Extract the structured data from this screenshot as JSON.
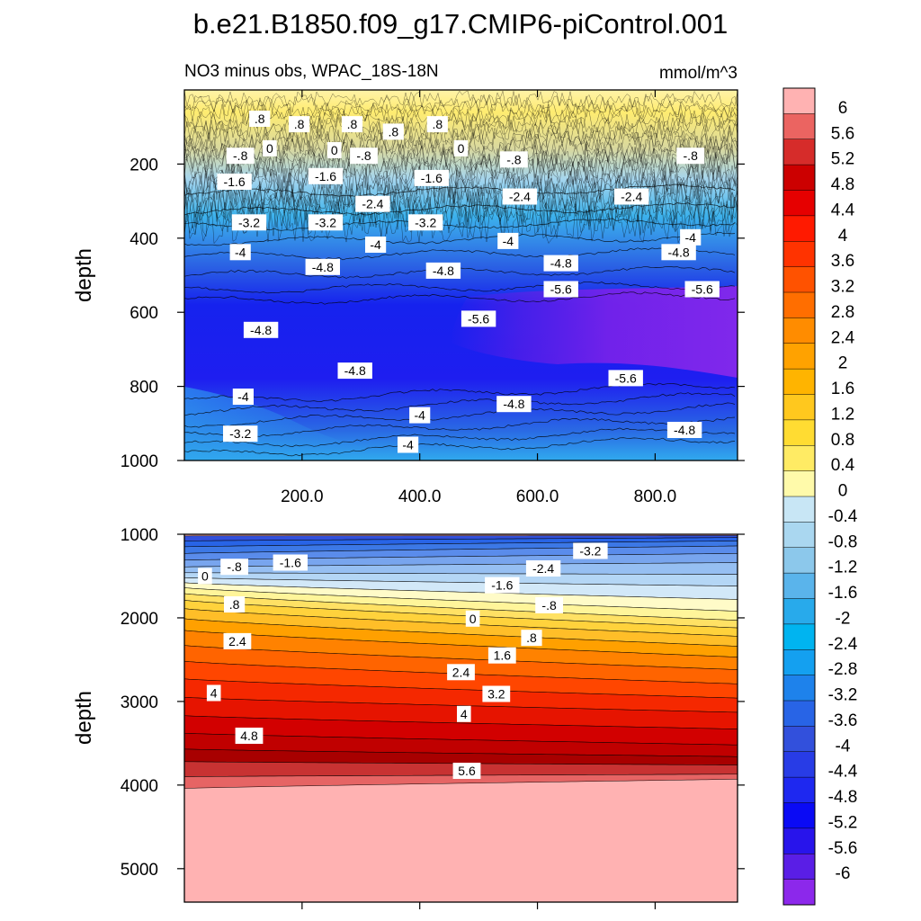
{
  "chart_data": [
    {
      "type": "heatmap",
      "title": "b.e21.B1850.f09_g17.CMIP6-piControl.001",
      "left_label": "NO3 minus obs, WPAC_18S-18N",
      "right_label": "mmol/m^3",
      "xlabel": "",
      "ylabel": "depth",
      "xlim": [
        0,
        940
      ],
      "ylim": [
        1000,
        0
      ],
      "x_ticks": [
        "200.0",
        "400.0",
        "600.0",
        "800.0"
      ],
      "y_ticks": [
        "200",
        "400",
        "600",
        "800",
        "1000"
      ],
      "contour_labels": [
        {
          "text": ".8",
          "x": 128,
          "y": 80
        },
        {
          "text": ".8",
          "x": 195,
          "y": 95
        },
        {
          "text": ".8",
          "x": 285,
          "y": 95
        },
        {
          "text": ".8",
          "x": 355,
          "y": 115
        },
        {
          "text": ".8",
          "x": 430,
          "y": 95
        },
        {
          "text": "0",
          "x": 145,
          "y": 160
        },
        {
          "text": "0",
          "x": 255,
          "y": 165
        },
        {
          "text": "0",
          "x": 470,
          "y": 160
        },
        {
          "text": "-.8",
          "x": 95,
          "y": 180
        },
        {
          "text": "-.8",
          "x": 305,
          "y": 180
        },
        {
          "text": "-.8",
          "x": 560,
          "y": 190
        },
        {
          "text": "-.8",
          "x": 860,
          "y": 180
        },
        {
          "text": "-1.6",
          "x": 85,
          "y": 250
        },
        {
          "text": "-1.6",
          "x": 240,
          "y": 235
        },
        {
          "text": "-1.6",
          "x": 420,
          "y": 240
        },
        {
          "text": "-2.4",
          "x": 320,
          "y": 310
        },
        {
          "text": "-2.4",
          "x": 570,
          "y": 290
        },
        {
          "text": "-2.4",
          "x": 760,
          "y": 290
        },
        {
          "text": "-3.2",
          "x": 110,
          "y": 360
        },
        {
          "text": "-3.2",
          "x": 240,
          "y": 360
        },
        {
          "text": "-3.2",
          "x": 410,
          "y": 360
        },
        {
          "text": "-4",
          "x": 95,
          "y": 440
        },
        {
          "text": "-4",
          "x": 325,
          "y": 420
        },
        {
          "text": "-4",
          "x": 550,
          "y": 410
        },
        {
          "text": "-4",
          "x": 860,
          "y": 400
        },
        {
          "text": "-4.8",
          "x": 235,
          "y": 480
        },
        {
          "text": "-4.8",
          "x": 440,
          "y": 490
        },
        {
          "text": "-4.8",
          "x": 640,
          "y": 470
        },
        {
          "text": "-4.8",
          "x": 840,
          "y": 440
        },
        {
          "text": "-4.8",
          "x": 130,
          "y": 650
        },
        {
          "text": "-4.8",
          "x": 290,
          "y": 760
        },
        {
          "text": "-4.8",
          "x": 560,
          "y": 850
        },
        {
          "text": "-4.8",
          "x": 850,
          "y": 920
        },
        {
          "text": "-5.6",
          "x": 500,
          "y": 620
        },
        {
          "text": "-5.6",
          "x": 640,
          "y": 540
        },
        {
          "text": "-5.6",
          "x": 750,
          "y": 780
        },
        {
          "text": "-5.6",
          "x": 880,
          "y": 540
        },
        {
          "text": "-4",
          "x": 100,
          "y": 830
        },
        {
          "text": "-4",
          "x": 400,
          "y": 880
        },
        {
          "text": "-3.2",
          "x": 95,
          "y": 930
        },
        {
          "text": "-4",
          "x": 380,
          "y": 960
        }
      ]
    },
    {
      "type": "heatmap",
      "xlabel": "",
      "ylabel": "depth",
      "xlim": [
        0,
        940
      ],
      "ylim": [
        5400,
        1000
      ],
      "y_ticks": [
        "1000",
        "2000",
        "3000",
        "4000",
        "5000"
      ],
      "contour_labels": [
        {
          "text": "-.8",
          "x": 85,
          "y": 1400
        },
        {
          "text": "-1.6",
          "x": 180,
          "y": 1350
        },
        {
          "text": "0",
          "x": 35,
          "y": 1510
        },
        {
          "text": "-3.2",
          "x": 690,
          "y": 1210
        },
        {
          "text": "-2.4",
          "x": 610,
          "y": 1420
        },
        {
          "text": "-1.6",
          "x": 540,
          "y": 1620
        },
        {
          "text": "-.8",
          "x": 620,
          "y": 1860
        },
        {
          "text": ".8",
          "x": 85,
          "y": 1850
        },
        {
          "text": "0",
          "x": 490,
          "y": 2020
        },
        {
          "text": ".8",
          "x": 590,
          "y": 2250
        },
        {
          "text": "1.6",
          "x": 540,
          "y": 2460
        },
        {
          "text": "2.4",
          "x": 90,
          "y": 2290
        },
        {
          "text": "2.4",
          "x": 470,
          "y": 2660
        },
        {
          "text": "3.2",
          "x": 530,
          "y": 2920
        },
        {
          "text": "4",
          "x": 50,
          "y": 2910
        },
        {
          "text": "4",
          "x": 475,
          "y": 3160
        },
        {
          "text": "4.8",
          "x": 110,
          "y": 3420
        },
        {
          "text": "5.6",
          "x": 480,
          "y": 3840
        }
      ]
    }
  ],
  "colorbar": {
    "levels": [
      "6",
      "5.6",
      "5.2",
      "4.8",
      "4.4",
      "4",
      "3.6",
      "3.2",
      "2.8",
      "2.4",
      "2",
      "1.6",
      "1.2",
      "0.8",
      "0.4",
      "0",
      "-0.4",
      "-0.8",
      "-1.2",
      "-1.6",
      "-2",
      "-2.4",
      "-2.8",
      "-3.2",
      "-3.6",
      "-4",
      "-4.4",
      "-4.8",
      "-5.2",
      "-5.6",
      "-6"
    ],
    "colors": [
      "#ffb2b2",
      "#eb6461",
      "#d62c2a",
      "#cc0000",
      "#e60000",
      "#ff1a00",
      "#ff3300",
      "#ff5200",
      "#ff6e00",
      "#ff8c00",
      "#ffa200",
      "#ffb400",
      "#ffc81e",
      "#ffdc32",
      "#ffeb64",
      "#fffaaa",
      "#c8e6f5",
      "#aad7f0",
      "#8cc8eb",
      "#5ab4eb",
      "#28aaeb",
      "#00b4f0",
      "#14a0f0",
      "#1e82eb",
      "#2864e6",
      "#3250dc",
      "#283ce6",
      "#1e28f0",
      "#0a0af5",
      "#2814eb",
      "#5a1ee6",
      "#8c28eb"
    ]
  }
}
